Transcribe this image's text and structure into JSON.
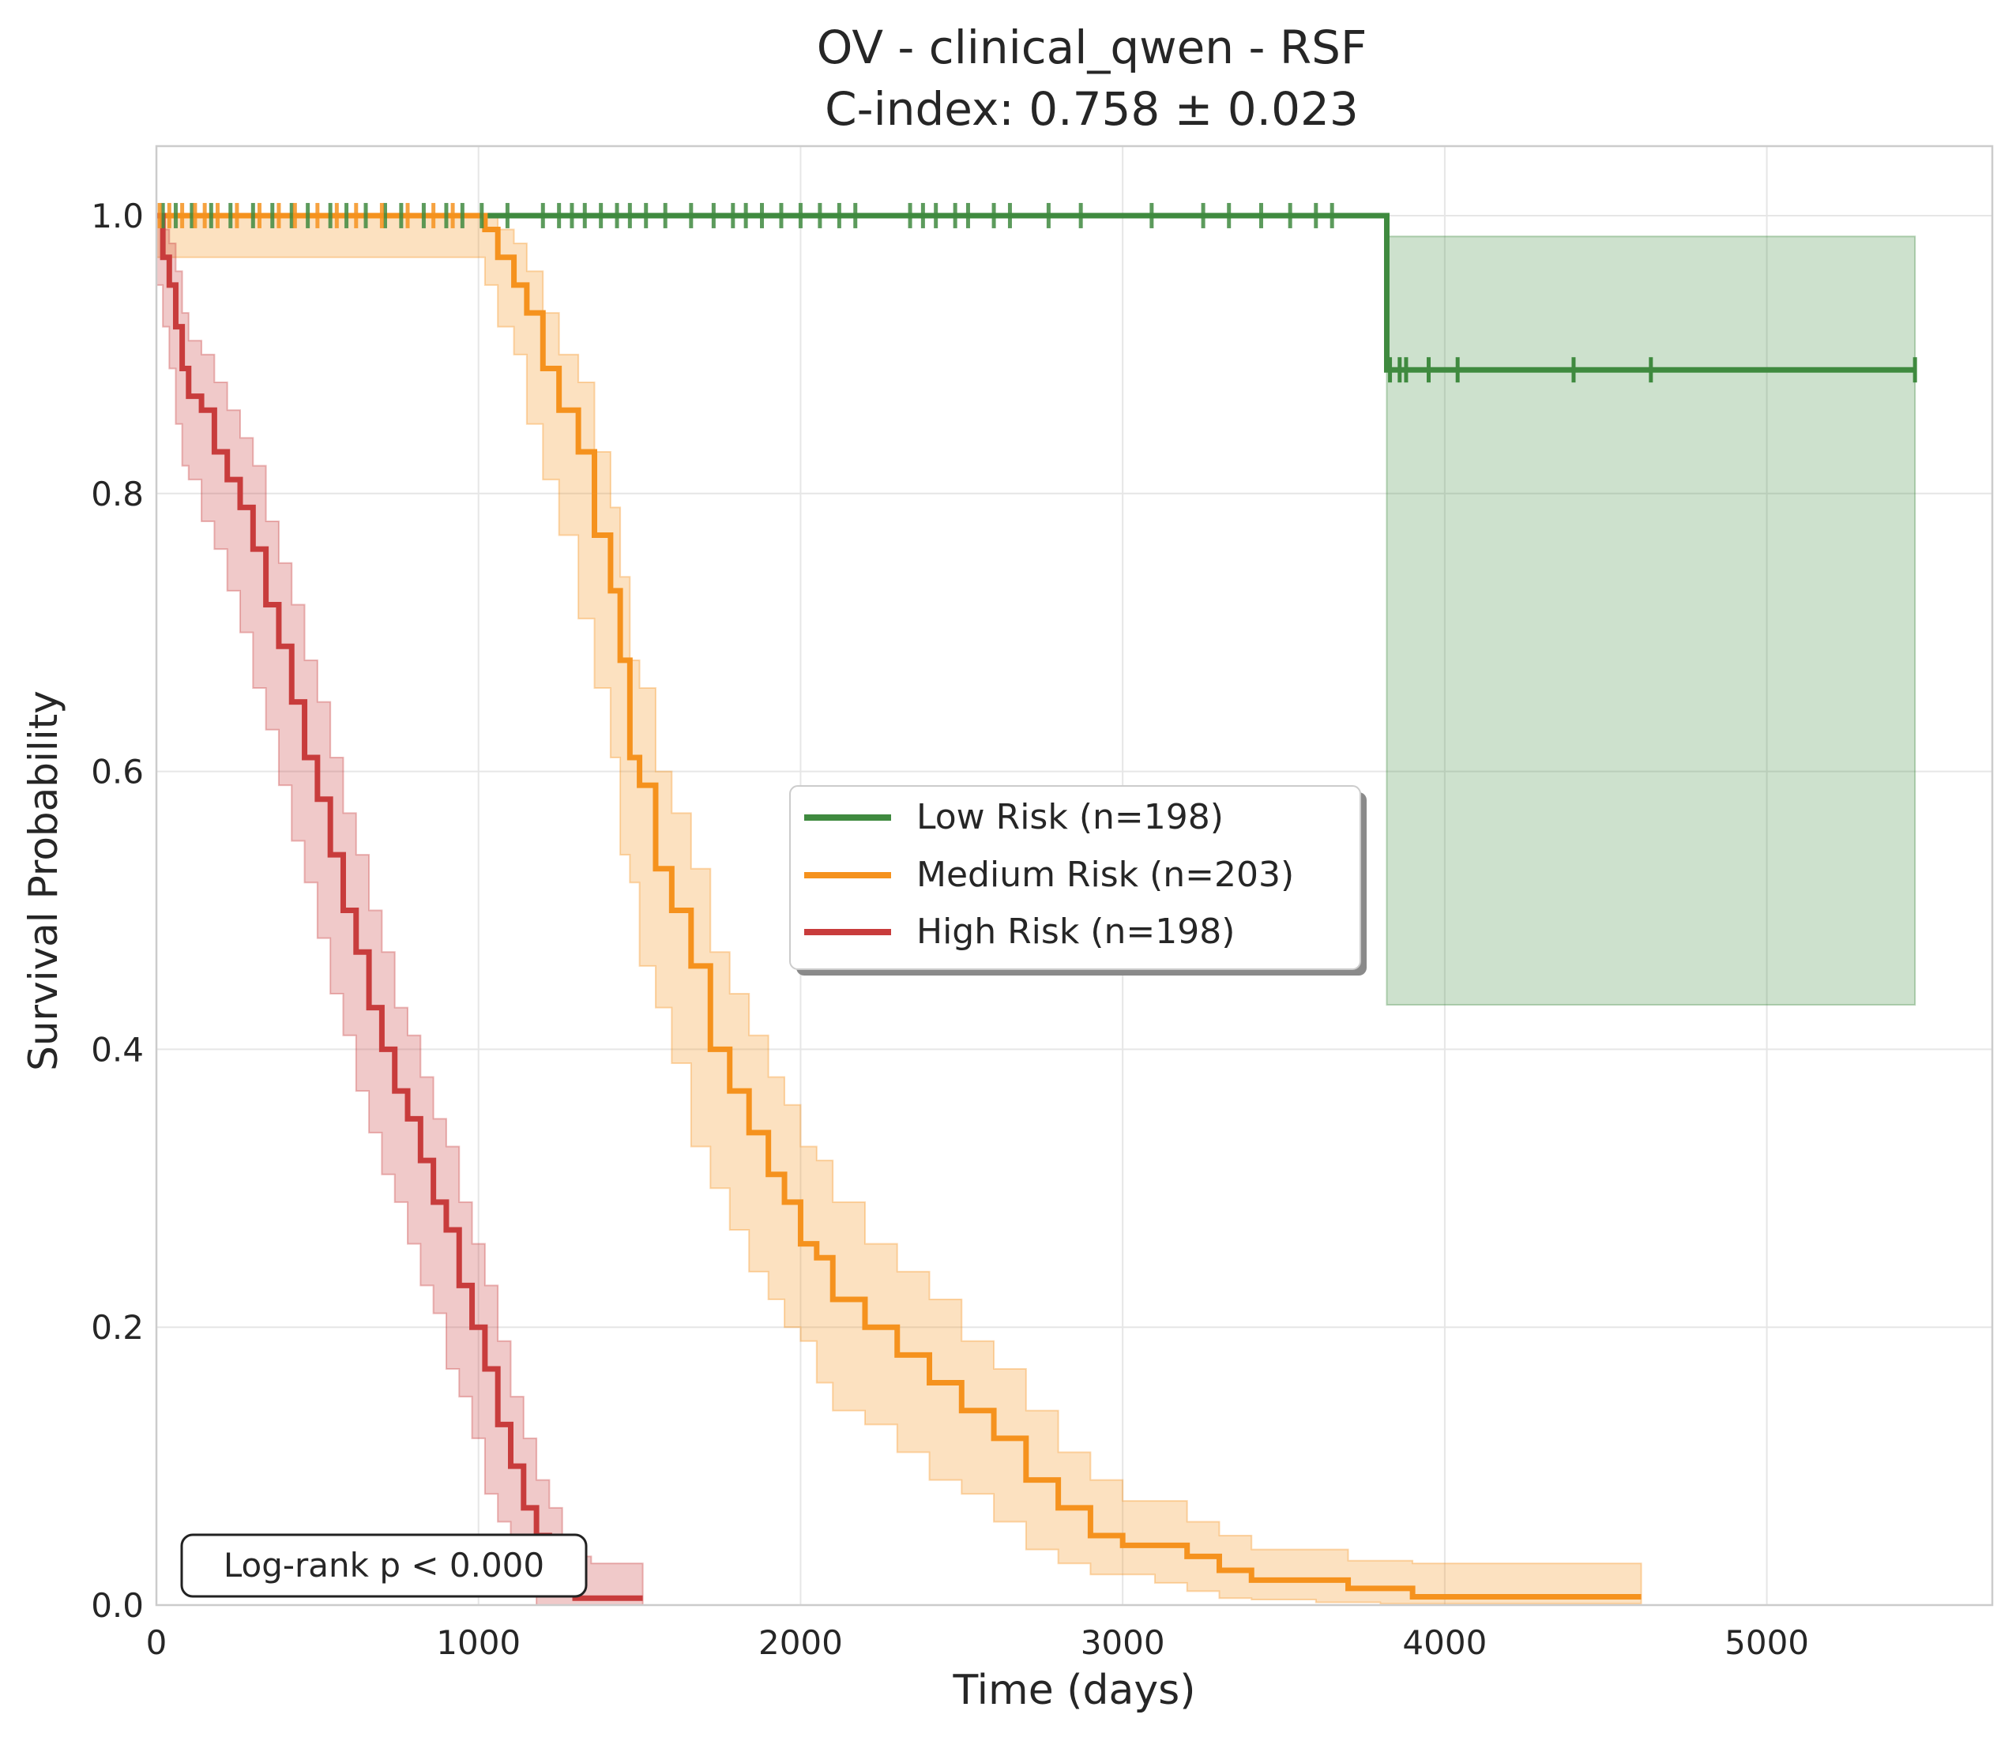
{
  "chart_data": {
    "type": "line",
    "title": "OV - clinical_qwen - RSF",
    "subtitle": "C-index: 0.758 ± 0.023",
    "xlabel": "Time (days)",
    "ylabel": "Survival Probability",
    "xlim": [
      0,
      5700
    ],
    "ylim": [
      0,
      1.05
    ],
    "xticks": [
      0,
      1000,
      2000,
      3000,
      4000,
      5000
    ],
    "xtick_labels": [
      "0",
      "1000",
      "2000",
      "3000",
      "4000",
      "5000"
    ],
    "yticks": [
      0,
      0.2,
      0.4,
      0.6,
      0.8,
      1.0
    ],
    "ytick_labels": [
      "0.0",
      "0.2",
      "0.4",
      "0.6",
      "0.8",
      "1.0"
    ],
    "grid": true,
    "legend_position": "center-right",
    "annotation": "Log-rank p < 0.000",
    "series": [
      {
        "name": "Low Risk (n=198)",
        "color": "#3f8a3f",
        "x": [
          0,
          3820,
          3820,
          5460
        ],
        "y": [
          1.0,
          1.0,
          0.889,
          0.889
        ],
        "ci_x": [
          3820,
          5460
        ],
        "ci_lower": [
          0.432,
          0.432
        ],
        "ci_upper": [
          0.985,
          0.985
        ],
        "censor_x": [
          20,
          60,
          110,
          170,
          230,
          300,
          360,
          420,
          470,
          540,
          590,
          650,
          710,
          760,
          830,
          900,
          950,
          1010,
          1090,
          1200,
          1250,
          1290,
          1330,
          1380,
          1430,
          1470,
          1520,
          1580,
          1660,
          1730,
          1790,
          1830,
          1880,
          1940,
          2000,
          2060,
          2120,
          2170,
          2340,
          2380,
          2420,
          2480,
          2520,
          2600,
          2650,
          2770,
          2870,
          3090,
          3250,
          3330,
          3430,
          3520,
          3600,
          3650
        ],
        "censor_y": 1.0,
        "censor_x2": [
          3830,
          3860,
          3880,
          3950,
          4040,
          4400,
          4640,
          5460
        ]
      },
      {
        "name": "Medium Risk (n=203)",
        "color": "#f5921e",
        "x": [
          0,
          1020,
          1060,
          1110,
          1150,
          1200,
          1250,
          1310,
          1360,
          1410,
          1440,
          1470,
          1500,
          1550,
          1600,
          1660,
          1720,
          1780,
          1840,
          1900,
          1950,
          2000,
          2050,
          2100,
          2200,
          2300,
          2400,
          2500,
          2600,
          2700,
          2800,
          2900,
          3000,
          3100,
          3200,
          3300,
          3400,
          3500,
          3600,
          3700,
          3800,
          3900,
          4000,
          4200,
          4400,
          4610
        ],
        "y": [
          1.0,
          0.99,
          0.97,
          0.95,
          0.93,
          0.89,
          0.86,
          0.83,
          0.77,
          0.73,
          0.68,
          0.61,
          0.59,
          0.53,
          0.5,
          0.46,
          0.4,
          0.37,
          0.34,
          0.31,
          0.29,
          0.26,
          0.25,
          0.22,
          0.2,
          0.18,
          0.16,
          0.14,
          0.12,
          0.09,
          0.07,
          0.05,
          0.043,
          0.043,
          0.035,
          0.025,
          0.018,
          0.018,
          0.018,
          0.012,
          0.012,
          0.006,
          0.006,
          0.006,
          0.006,
          0.006
        ],
        "ci_lower": [
          1.0,
          0.97,
          0.95,
          0.92,
          0.9,
          0.85,
          0.81,
          0.77,
          0.71,
          0.66,
          0.61,
          0.54,
          0.52,
          0.46,
          0.43,
          0.39,
          0.33,
          0.3,
          0.27,
          0.24,
          0.22,
          0.2,
          0.19,
          0.16,
          0.14,
          0.13,
          0.11,
          0.09,
          0.08,
          0.06,
          0.04,
          0.03,
          0.022,
          0.022,
          0.016,
          0.01,
          0.005,
          0.004,
          0.004,
          0.002,
          0.002,
          0.001,
          0.001,
          0.001,
          0.001,
          0.001
        ],
        "ci_upper": [
          1.0,
          1.0,
          0.99,
          0.98,
          0.96,
          0.93,
          0.9,
          0.88,
          0.83,
          0.79,
          0.74,
          0.68,
          0.66,
          0.6,
          0.57,
          0.53,
          0.47,
          0.44,
          0.41,
          0.38,
          0.36,
          0.33,
          0.32,
          0.29,
          0.26,
          0.24,
          0.22,
          0.19,
          0.17,
          0.14,
          0.11,
          0.09,
          0.075,
          0.075,
          0.06,
          0.05,
          0.04,
          0.04,
          0.04,
          0.032,
          0.032,
          0.03,
          0.03,
          0.03,
          0.03,
          0.03
        ],
        "censor_x": [
          10,
          40,
          80,
          120,
          150,
          190,
          250,
          320,
          380,
          430,
          500,
          560,
          620,
          700,
          780,
          860,
          920
        ],
        "censor_y": 1.0
      },
      {
        "name": "High Risk (n=198)",
        "color": "#c83c3c",
        "x": [
          0,
          20,
          40,
          60,
          80,
          100,
          140,
          180,
          220,
          260,
          300,
          340,
          380,
          420,
          460,
          500,
          540,
          580,
          620,
          660,
          700,
          740,
          780,
          820,
          860,
          900,
          940,
          980,
          1020,
          1060,
          1100,
          1140,
          1180,
          1220,
          1260,
          1300,
          1350,
          1400,
          1510
        ],
        "y": [
          1.0,
          0.97,
          0.95,
          0.92,
          0.89,
          0.87,
          0.86,
          0.83,
          0.81,
          0.79,
          0.76,
          0.72,
          0.69,
          0.65,
          0.61,
          0.58,
          0.54,
          0.5,
          0.47,
          0.43,
          0.4,
          0.37,
          0.35,
          0.32,
          0.29,
          0.27,
          0.23,
          0.2,
          0.17,
          0.13,
          0.1,
          0.07,
          0.05,
          0.03,
          0.01,
          0.005,
          0.005,
          0.005,
          0.005
        ],
        "ci_lower": [
          1.0,
          0.95,
          0.92,
          0.89,
          0.85,
          0.82,
          0.81,
          0.78,
          0.76,
          0.73,
          0.7,
          0.66,
          0.63,
          0.59,
          0.55,
          0.52,
          0.48,
          0.44,
          0.41,
          0.37,
          0.34,
          0.31,
          0.29,
          0.26,
          0.23,
          0.21,
          0.17,
          0.15,
          0.12,
          0.08,
          0.06,
          0.03,
          0.01,
          0.0,
          0.0,
          0.0,
          0.0,
          0.0,
          0.0
        ],
        "ci_upper": [
          1.0,
          0.99,
          0.98,
          0.96,
          0.93,
          0.91,
          0.9,
          0.88,
          0.86,
          0.84,
          0.82,
          0.78,
          0.75,
          0.72,
          0.68,
          0.65,
          0.61,
          0.57,
          0.54,
          0.5,
          0.47,
          0.43,
          0.41,
          0.38,
          0.35,
          0.33,
          0.29,
          0.26,
          0.23,
          0.19,
          0.15,
          0.12,
          0.09,
          0.07,
          0.05,
          0.035,
          0.03,
          0.03,
          0.03
        ],
        "censor_x": [],
        "censor_y": 1.0
      }
    ]
  }
}
